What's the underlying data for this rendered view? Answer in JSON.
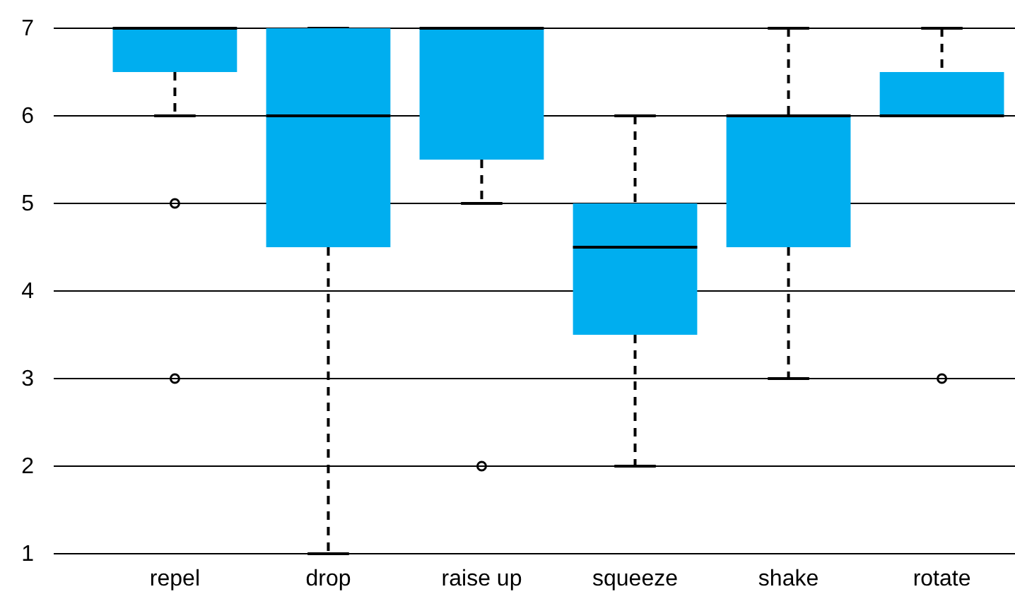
{
  "chart_data": {
    "type": "box",
    "categories": [
      "repel",
      "drop",
      "raise up",
      "squeeze",
      "shake",
      "rotate"
    ],
    "boxes": [
      {
        "low": 6,
        "q1": 6.5,
        "median": 7,
        "q3": 7,
        "high": 7,
        "outliers": [
          5,
          3
        ]
      },
      {
        "low": 1,
        "q1": 4.5,
        "median": 6,
        "q3": 7,
        "high": 7
      },
      {
        "low": 5,
        "q1": 5.5,
        "median": 7,
        "q3": 7,
        "high": 7,
        "outliers": [
          2
        ]
      },
      {
        "low": 2,
        "q1": 3.5,
        "median": 4.5,
        "q3": 5,
        "high": 6
      },
      {
        "low": 3,
        "q1": 4.5,
        "median": 6,
        "q3": 6,
        "high": 7
      },
      {
        "low": 6,
        "q1": 6,
        "median": 6,
        "q3": 6.5,
        "high": 7,
        "outliers": [
          3
        ]
      }
    ],
    "color": "#00aeef",
    "ylim": [
      1,
      7
    ],
    "yticks": [
      1,
      2,
      3,
      4,
      5,
      6,
      7
    ],
    "grid": "y"
  }
}
